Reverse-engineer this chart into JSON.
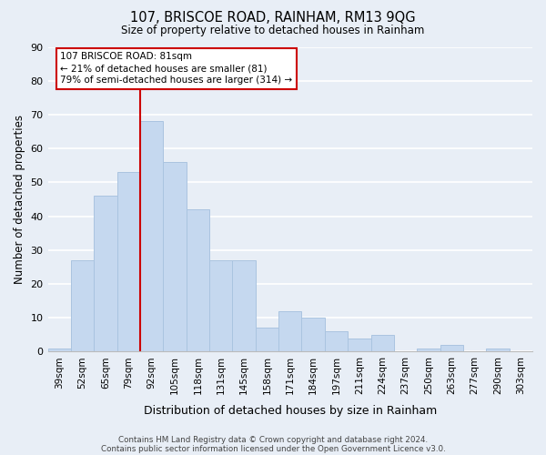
{
  "title": "107, BRISCOE ROAD, RAINHAM, RM13 9QG",
  "subtitle": "Size of property relative to detached houses in Rainham",
  "xlabel": "Distribution of detached houses by size in Rainham",
  "ylabel": "Number of detached properties",
  "bar_labels": [
    "39sqm",
    "52sqm",
    "65sqm",
    "79sqm",
    "92sqm",
    "105sqm",
    "118sqm",
    "131sqm",
    "145sqm",
    "158sqm",
    "171sqm",
    "184sqm",
    "197sqm",
    "211sqm",
    "224sqm",
    "237sqm",
    "250sqm",
    "263sqm",
    "277sqm",
    "290sqm",
    "303sqm"
  ],
  "bar_values": [
    1,
    27,
    46,
    53,
    68,
    56,
    42,
    27,
    27,
    7,
    12,
    10,
    6,
    4,
    5,
    0,
    1,
    2,
    0,
    1,
    0
  ],
  "bar_color": "#c5d8ef",
  "bar_edge_color": "#aac4e0",
  "background_color": "#e8eef6",
  "grid_color": "#ffffff",
  "vline_x": 3.5,
  "vline_color": "#cc0000",
  "ylim": [
    0,
    90
  ],
  "yticks": [
    0,
    10,
    20,
    30,
    40,
    50,
    60,
    70,
    80,
    90
  ],
  "annotation_title": "107 BRISCOE ROAD: 81sqm",
  "annotation_line1": "← 21% of detached houses are smaller (81)",
  "annotation_line2": "79% of semi-detached houses are larger (314) →",
  "annotation_box_color": "#ffffff",
  "annotation_edge_color": "#cc0000",
  "footer_line1": "Contains HM Land Registry data © Crown copyright and database right 2024.",
  "footer_line2": "Contains public sector information licensed under the Open Government Licence v3.0."
}
